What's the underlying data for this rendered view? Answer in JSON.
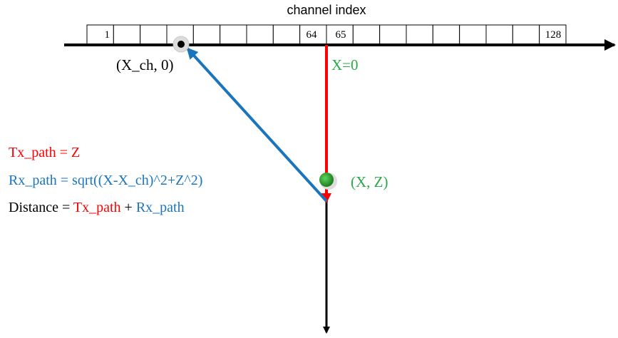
{
  "title": "channel index",
  "channel_labels": {
    "first": "1",
    "left_center": "64",
    "right_center": "65",
    "last": "128"
  },
  "point_labels": {
    "channel_point": "(X_ch, 0)",
    "origin": "X=0",
    "target": "(X, Z)"
  },
  "equations": {
    "tx_line": "Tx_path = Z",
    "rx_line": "Rx_path = sqrt((X-X_ch)^2+Z^2)",
    "distance_prefix": "Distance = ",
    "distance_tx": "Tx_path",
    "distance_plus": " + ",
    "distance_rx": "Rx_path"
  },
  "colors": {
    "tx": "#ff0000",
    "rx": "#1a75bc",
    "point": "#2ca02c",
    "axis": "#000000",
    "label_green": "#2aa84a"
  }
}
